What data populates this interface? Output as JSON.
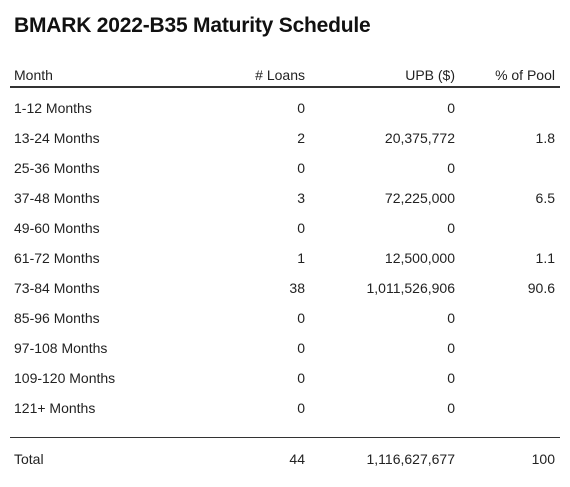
{
  "title": "BMARK 2022-B35 Maturity Schedule",
  "columns": {
    "month": "Month",
    "loans": "# Loans",
    "upb": "UPB ($)",
    "pct": "% of Pool"
  },
  "rows": [
    {
      "month": "1-12 Months",
      "loans": "0",
      "upb": "0",
      "pct": ""
    },
    {
      "month": "13-24 Months",
      "loans": "2",
      "upb": "20,375,772",
      "pct": "1.8"
    },
    {
      "month": "25-36 Months",
      "loans": "0",
      "upb": "0",
      "pct": ""
    },
    {
      "month": "37-48 Months",
      "loans": "3",
      "upb": "72,225,000",
      "pct": "6.5"
    },
    {
      "month": "49-60 Months",
      "loans": "0",
      "upb": "0",
      "pct": ""
    },
    {
      "month": "61-72 Months",
      "loans": "1",
      "upb": "12,500,000",
      "pct": "1.1"
    },
    {
      "month": "73-84 Months",
      "loans": "38",
      "upb": "1,011,526,906",
      "pct": "90.6"
    },
    {
      "month": "85-96 Months",
      "loans": "0",
      "upb": "0",
      "pct": ""
    },
    {
      "month": "97-108 Months",
      "loans": "0",
      "upb": "0",
      "pct": ""
    },
    {
      "month": "109-120 Months",
      "loans": "0",
      "upb": "0",
      "pct": ""
    },
    {
      "month": "121+ Months",
      "loans": "0",
      "upb": "0",
      "pct": ""
    }
  ],
  "total": {
    "month": "Total",
    "loans": "44",
    "upb": "1,116,627,677",
    "pct": "100"
  }
}
